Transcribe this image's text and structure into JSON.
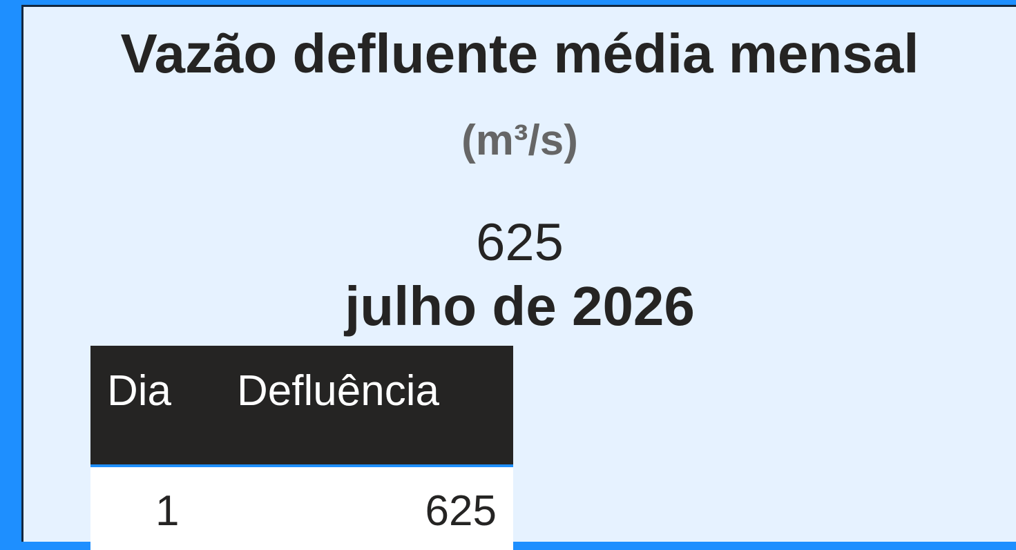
{
  "title": "Vazão defluente média mensal",
  "unit": "(m³/s)",
  "kpi": {
    "value": 625,
    "period": "julho de 2026"
  },
  "table": {
    "columns": [
      "Dia",
      "Defluência"
    ],
    "rows": [
      [
        1,
        625
      ]
    ]
  }
}
